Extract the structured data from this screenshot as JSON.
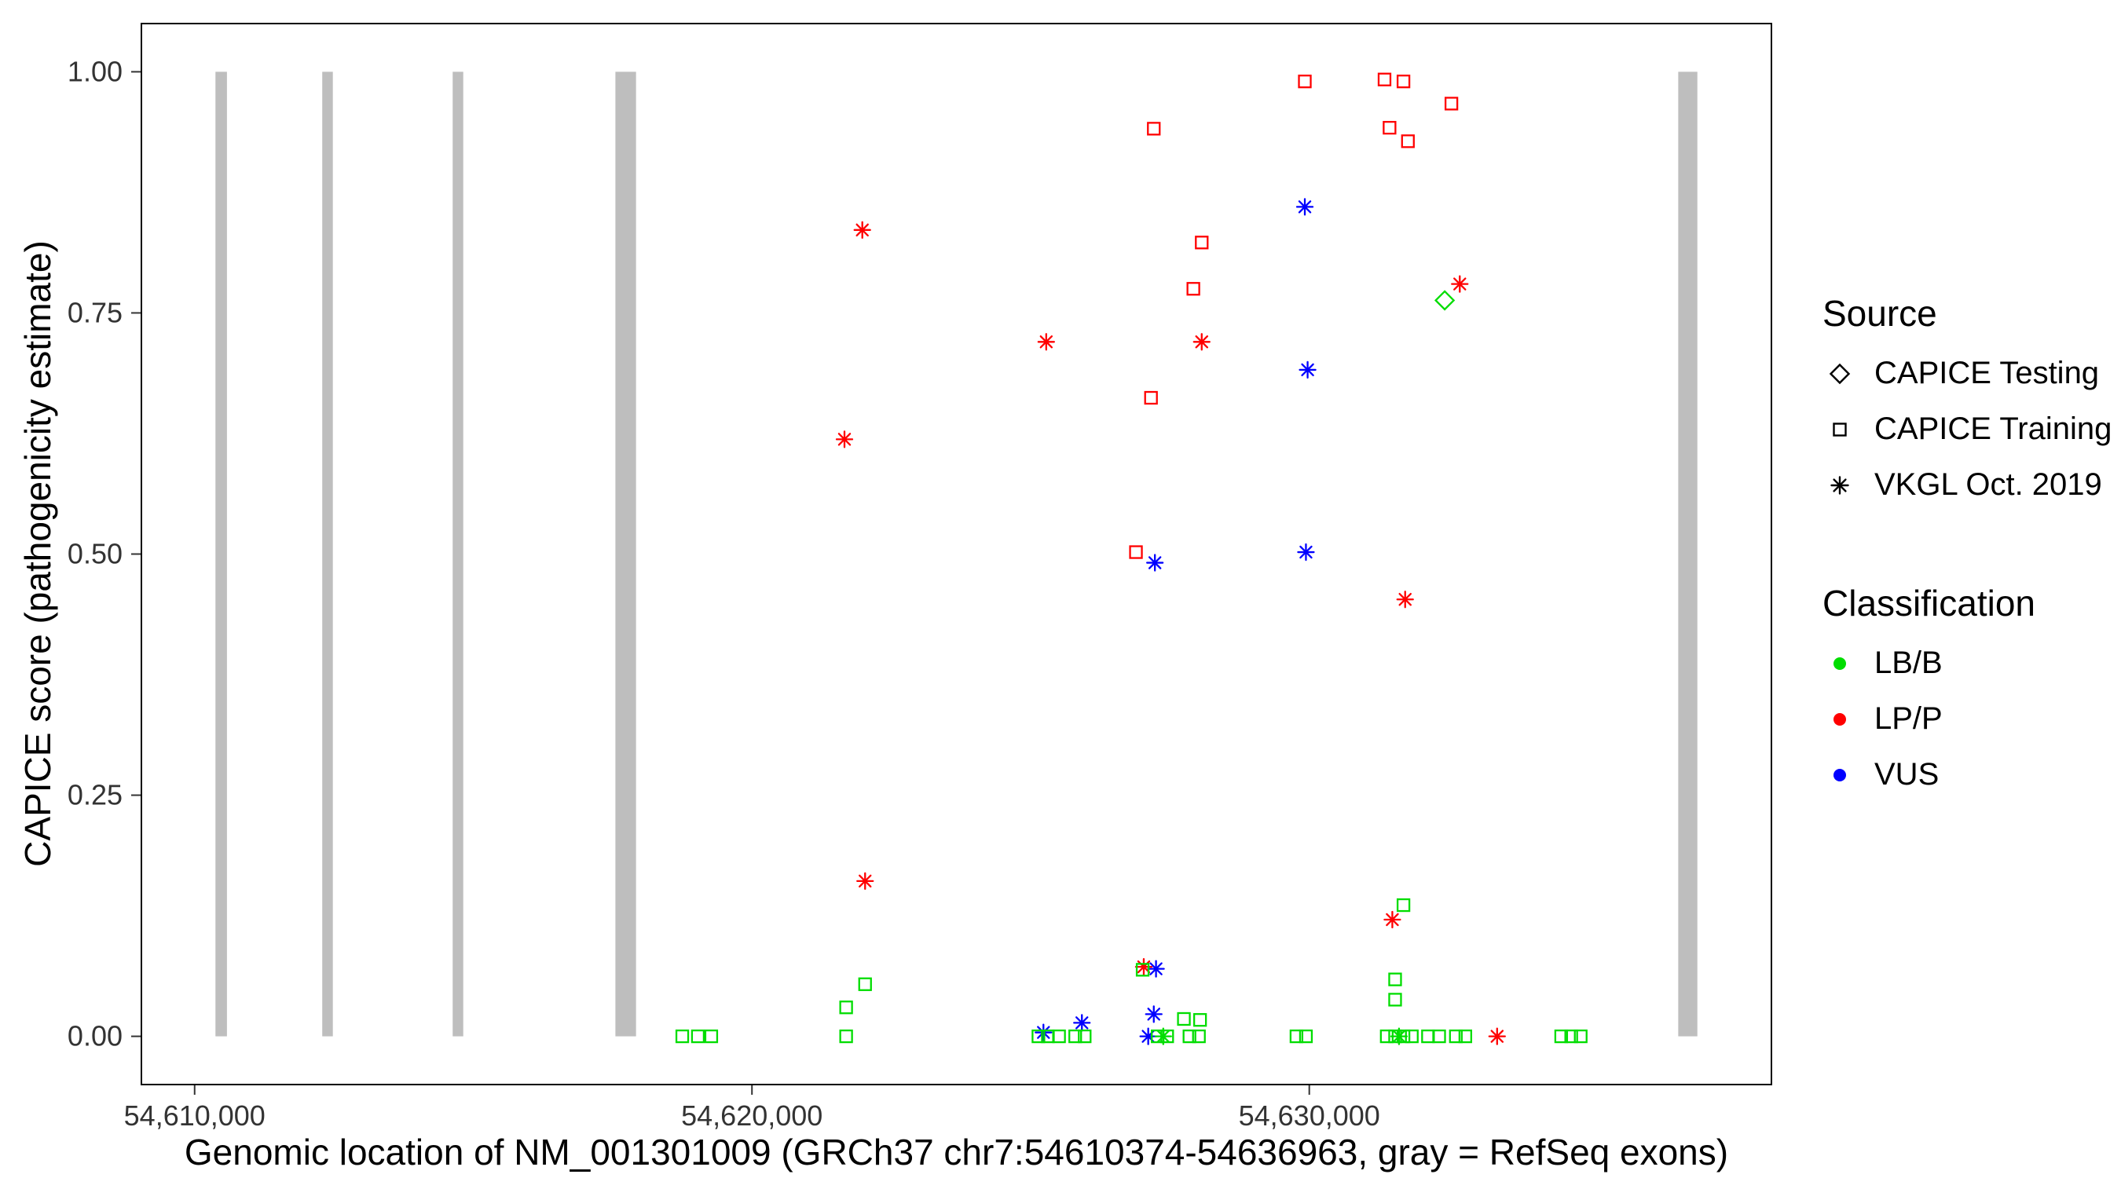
{
  "chart_data": {
    "type": "scatter",
    "title": "",
    "xlabel": "Genomic location of NM_001301009 (GRCh37 chr7:54610374-54636963, gray = RefSeq exons)",
    "ylabel": "CAPICE score (pathogenicity estimate)",
    "xlim": [
      54609045,
      54638292
    ],
    "ylim": [
      -0.05,
      1.05
    ],
    "x_ticks": [
      54610000,
      54620000,
      54630000
    ],
    "x_tick_labels": [
      "54,610,000",
      "54,620,000",
      "54,630,000"
    ],
    "y_ticks": [
      0,
      0.25,
      0.5,
      0.75,
      1
    ],
    "y_tick_labels": [
      "0.00",
      "0.25",
      "0.50",
      "0.75",
      "1.00"
    ],
    "grid": false,
    "legend_position": "right",
    "exon_color": "#BEBEBE",
    "exons": [
      [
        54610374,
        54610580
      ],
      [
        54612290,
        54612480
      ],
      [
        54614630,
        54614820
      ],
      [
        54617550,
        54617920
      ],
      [
        54636620,
        54636963
      ]
    ],
    "shape_by_source": {
      "CAPICE Testing": "diamond",
      "CAPICE Training": "square",
      "VKGL Oct. 2019": "asterisk"
    },
    "color_by_class": {
      "LB/B": "#00DD00",
      "LP/P": "#FF0000",
      "VUS": "#0000FF"
    },
    "points": [
      {
        "x": 54629920,
        "y": 0.99,
        "source": "CAPICE Training",
        "class": "LP/P"
      },
      {
        "x": 54631350,
        "y": 0.992,
        "source": "CAPICE Training",
        "class": "LP/P"
      },
      {
        "x": 54631690,
        "y": 0.99,
        "source": "CAPICE Training",
        "class": "LP/P"
      },
      {
        "x": 54632550,
        "y": 0.967,
        "source": "CAPICE Training",
        "class": "LP/P"
      },
      {
        "x": 54631440,
        "y": 0.942,
        "source": "CAPICE Training",
        "class": "LP/P"
      },
      {
        "x": 54631770,
        "y": 0.928,
        "source": "CAPICE Training",
        "class": "LP/P"
      },
      {
        "x": 54627210,
        "y": 0.941,
        "source": "CAPICE Training",
        "class": "LP/P"
      },
      {
        "x": 54628070,
        "y": 0.823,
        "source": "CAPICE Training",
        "class": "LP/P"
      },
      {
        "x": 54627920,
        "y": 0.775,
        "source": "CAPICE Training",
        "class": "LP/P"
      },
      {
        "x": 54627160,
        "y": 0.662,
        "source": "CAPICE Training",
        "class": "LP/P"
      },
      {
        "x": 54626890,
        "y": 0.502,
        "source": "CAPICE Training",
        "class": "LP/P"
      },
      {
        "x": 54621980,
        "y": 0.836,
        "source": "VKGL Oct. 2019",
        "class": "LP/P"
      },
      {
        "x": 54621660,
        "y": 0.619,
        "source": "VKGL Oct. 2019",
        "class": "LP/P"
      },
      {
        "x": 54625280,
        "y": 0.72,
        "source": "VKGL Oct. 2019",
        "class": "LP/P"
      },
      {
        "x": 54628070,
        "y": 0.72,
        "source": "VKGL Oct. 2019",
        "class": "LP/P"
      },
      {
        "x": 54632700,
        "y": 0.78,
        "source": "VKGL Oct. 2019",
        "class": "LP/P"
      },
      {
        "x": 54631720,
        "y": 0.453,
        "source": "VKGL Oct. 2019",
        "class": "LP/P"
      },
      {
        "x": 54622030,
        "y": 0.161,
        "source": "VKGL Oct. 2019",
        "class": "LP/P"
      },
      {
        "x": 54631490,
        "y": 0.121,
        "source": "VKGL Oct. 2019",
        "class": "LP/P"
      },
      {
        "x": 54627030,
        "y": 0.072,
        "source": "VKGL Oct. 2019",
        "class": "LP/P"
      },
      {
        "x": 54633370,
        "y": 0.0,
        "source": "VKGL Oct. 2019",
        "class": "LP/P"
      },
      {
        "x": 54629920,
        "y": 0.86,
        "source": "VKGL Oct. 2019",
        "class": "VUS"
      },
      {
        "x": 54629970,
        "y": 0.691,
        "source": "VKGL Oct. 2019",
        "class": "VUS"
      },
      {
        "x": 54629940,
        "y": 0.502,
        "source": "VKGL Oct. 2019",
        "class": "VUS"
      },
      {
        "x": 54627230,
        "y": 0.491,
        "source": "VKGL Oct. 2019",
        "class": "VUS"
      },
      {
        "x": 54627250,
        "y": 0.07,
        "source": "VKGL Oct. 2019",
        "class": "VUS"
      },
      {
        "x": 54627210,
        "y": 0.023,
        "source": "VKGL Oct. 2019",
        "class": "VUS"
      },
      {
        "x": 54625920,
        "y": 0.014,
        "source": "VKGL Oct. 2019",
        "class": "VUS"
      },
      {
        "x": 54625230,
        "y": 0.004,
        "source": "VKGL Oct. 2019",
        "class": "VUS"
      },
      {
        "x": 54627110,
        "y": 0.0,
        "source": "VKGL Oct. 2019",
        "class": "VUS"
      },
      {
        "x": 54632430,
        "y": 0.763,
        "source": "CAPICE Testing",
        "class": "LB/B"
      },
      {
        "x": 54622030,
        "y": 0.054,
        "source": "CAPICE Training",
        "class": "LB/B"
      },
      {
        "x": 54621690,
        "y": 0.03,
        "source": "CAPICE Training",
        "class": "LB/B"
      },
      {
        "x": 54621690,
        "y": 0.0,
        "source": "CAPICE Training",
        "class": "LB/B"
      },
      {
        "x": 54618750,
        "y": 0.0,
        "source": "CAPICE Training",
        "class": "LB/B"
      },
      {
        "x": 54619030,
        "y": 0.0,
        "source": "CAPICE Training",
        "class": "LB/B"
      },
      {
        "x": 54619270,
        "y": 0.0,
        "source": "CAPICE Training",
        "class": "LB/B"
      },
      {
        "x": 54627010,
        "y": 0.069,
        "source": "CAPICE Training",
        "class": "LB/B"
      },
      {
        "x": 54627750,
        "y": 0.018,
        "source": "CAPICE Training",
        "class": "LB/B"
      },
      {
        "x": 54628040,
        "y": 0.017,
        "source": "CAPICE Training",
        "class": "LB/B"
      },
      {
        "x": 54625140,
        "y": 0.0,
        "source": "CAPICE Training",
        "class": "LB/B"
      },
      {
        "x": 54625310,
        "y": 0.0,
        "source": "CAPICE Training",
        "class": "LB/B"
      },
      {
        "x": 54625510,
        "y": 0.0,
        "source": "CAPICE Training",
        "class": "LB/B"
      },
      {
        "x": 54625800,
        "y": 0.0,
        "source": "CAPICE Training",
        "class": "LB/B"
      },
      {
        "x": 54625970,
        "y": 0.0,
        "source": "CAPICE Training",
        "class": "LB/B"
      },
      {
        "x": 54627280,
        "y": 0.0,
        "source": "CAPICE Training",
        "class": "LB/B"
      },
      {
        "x": 54627450,
        "y": 0.0,
        "source": "CAPICE Training",
        "class": "LB/B"
      },
      {
        "x": 54627850,
        "y": 0.0,
        "source": "CAPICE Training",
        "class": "LB/B"
      },
      {
        "x": 54628020,
        "y": 0.0,
        "source": "CAPICE Training",
        "class": "LB/B"
      },
      {
        "x": 54629770,
        "y": 0.0,
        "source": "CAPICE Training",
        "class": "LB/B"
      },
      {
        "x": 54629940,
        "y": 0.0,
        "source": "CAPICE Training",
        "class": "LB/B"
      },
      {
        "x": 54631690,
        "y": 0.136,
        "source": "CAPICE Training",
        "class": "LB/B"
      },
      {
        "x": 54631540,
        "y": 0.059,
        "source": "CAPICE Training",
        "class": "LB/B"
      },
      {
        "x": 54631540,
        "y": 0.038,
        "source": "CAPICE Training",
        "class": "LB/B"
      },
      {
        "x": 54631390,
        "y": 0.0,
        "source": "CAPICE Training",
        "class": "LB/B"
      },
      {
        "x": 54631540,
        "y": 0.0,
        "source": "CAPICE Training",
        "class": "LB/B"
      },
      {
        "x": 54631690,
        "y": 0.0,
        "source": "CAPICE Training",
        "class": "LB/B"
      },
      {
        "x": 54631840,
        "y": 0.0,
        "source": "CAPICE Training",
        "class": "LB/B"
      },
      {
        "x": 54632130,
        "y": 0.0,
        "source": "CAPICE Training",
        "class": "LB/B"
      },
      {
        "x": 54632330,
        "y": 0.0,
        "source": "CAPICE Training",
        "class": "LB/B"
      },
      {
        "x": 54632630,
        "y": 0.0,
        "source": "CAPICE Training",
        "class": "LB/B"
      },
      {
        "x": 54632800,
        "y": 0.0,
        "source": "CAPICE Training",
        "class": "LB/B"
      },
      {
        "x": 54634520,
        "y": 0.0,
        "source": "CAPICE Training",
        "class": "LB/B"
      },
      {
        "x": 54634700,
        "y": 0.0,
        "source": "CAPICE Training",
        "class": "LB/B"
      },
      {
        "x": 54634870,
        "y": 0.0,
        "source": "CAPICE Training",
        "class": "LB/B"
      },
      {
        "x": 54627380,
        "y": 0.0,
        "source": "VKGL Oct. 2019",
        "class": "LB/B"
      },
      {
        "x": 54631610,
        "y": 0.0,
        "source": "VKGL Oct. 2019",
        "class": "LB/B"
      }
    ]
  },
  "legend": {
    "source": {
      "title": "Source",
      "items": [
        {
          "label": "CAPICE Testing",
          "shape": "diamond"
        },
        {
          "label": "CAPICE Training",
          "shape": "square"
        },
        {
          "label": "VKGL Oct. 2019",
          "shape": "asterisk"
        }
      ]
    },
    "classification": {
      "title": "Classification",
      "items": [
        {
          "label": "LB/B",
          "color": "#00DD00"
        },
        {
          "label": "LP/P",
          "color": "#FF0000"
        },
        {
          "label": "VUS",
          "color": "#0000FF"
        }
      ]
    }
  }
}
